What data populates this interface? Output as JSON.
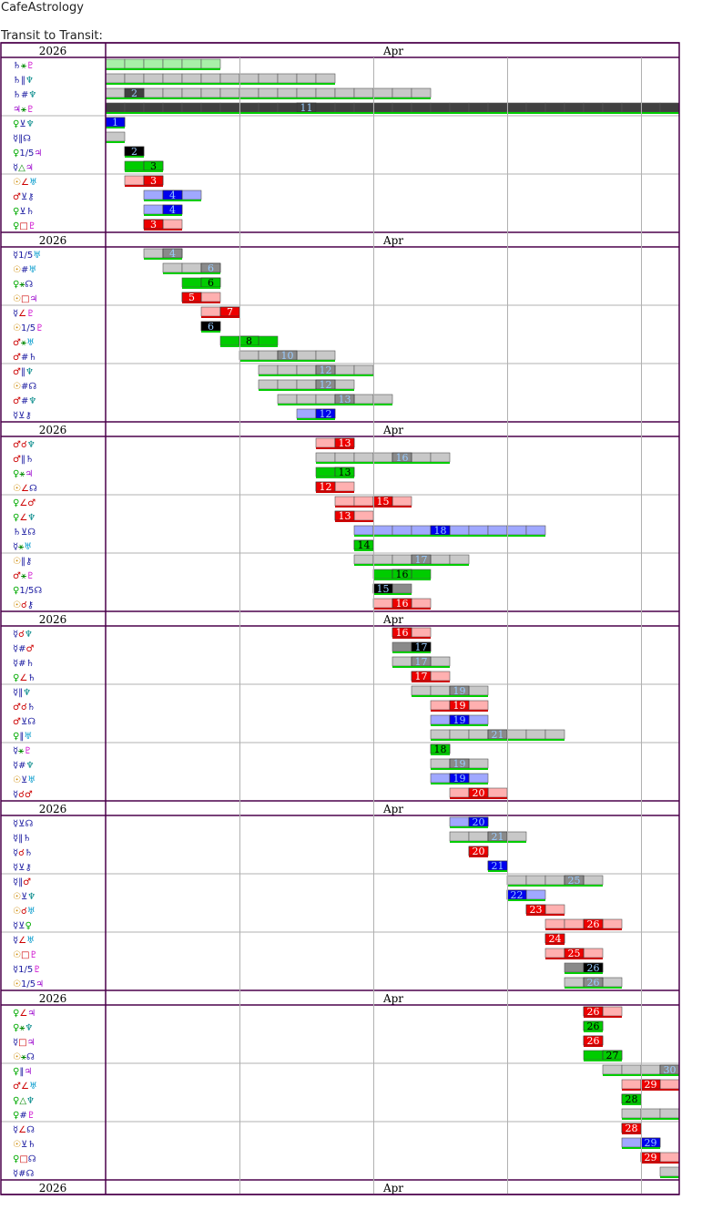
{
  "site_title": "CafeAstrology",
  "section_title": "Transit to Transit:",
  "year": "2026",
  "month": "Apr",
  "colors": {
    "frame": "#4b004b",
    "grid": "#b0b0b0",
    "green": "#00cc00",
    "light_green": "#a8f0a8",
    "gray_light": "#c8c8c8",
    "gray_mid": "#8a8a8a",
    "gray_dark": "#404040",
    "black": "#000000",
    "blue": "#0000ee",
    "light_blue": "#a0a8ff",
    "red": "#ee0000",
    "pink": "#ffb0b0",
    "underline_green": "#00cc00",
    "underline_red": "#cc0000"
  },
  "symbol_colors": {
    "☉": "#cc8800",
    "☿": "#1a1aa0",
    "♀": "#00aa00",
    "♂": "#cc0000",
    "♃": "#9900cc",
    "♄": "#1a1aa0",
    "♅": "#0099cc",
    "♆": "#008888",
    "♇": "#cc00cc",
    "⚷": "#1a1aa0",
    "☊": "#1a1aa0",
    "⚹": "#008800",
    "△": "#008800",
    "☌": "#cc0000",
    "□": "#cc0000",
    "∠": "#cc0000",
    "⊻": "#1a1aa0",
    "#": "#1a1aa0",
    "‖": "#1a1aa0",
    "1/5": "#1a1aa0"
  },
  "groups": [
    {
      "rows": [
        {
          "label": "♄⚹♇",
          "day": null,
          "start": 1,
          "end": 7,
          "style": "green-light"
        },
        {
          "label": "♄‖♆",
          "day": null,
          "start": 1,
          "end": 13,
          "style": "gray-light"
        },
        {
          "label": "♄#♆",
          "day": "2",
          "start": 1,
          "end": 18,
          "style": "gray-light-dark"
        },
        {
          "label": "♃⚹♇",
          "day": "11",
          "start": 1,
          "end": 31,
          "style": "gray-dark"
        }
      ]
    },
    {
      "rows": [
        {
          "label": "♀⊻♆",
          "day": "1",
          "start": 1,
          "end": 2,
          "style": "blue"
        },
        {
          "label": "☿‖☊",
          "day": null,
          "start": 1,
          "end": 2,
          "style": "gray-light"
        },
        {
          "label": "♀1/5♃",
          "day": "2",
          "start": 2,
          "end": 3,
          "style": "black"
        },
        {
          "label": "☿△♃",
          "day": "3",
          "start": 2,
          "end": 4,
          "style": "green"
        }
      ]
    },
    {
      "rows": [
        {
          "label": "☉∠♅",
          "day": "3",
          "start": 2,
          "end": 4,
          "style": "red"
        },
        {
          "label": "♂⊻⚷",
          "day": "4",
          "start": 3,
          "end": 6,
          "style": "blue"
        },
        {
          "label": "♀⊻♄",
          "day": "4",
          "start": 3,
          "end": 5,
          "style": "blue"
        },
        {
          "label": "♀□♇",
          "day": "3",
          "start": 3,
          "end": 5,
          "style": "red"
        }
      ]
    },
    {
      "header": true,
      "rows": [
        {
          "label": "☿1/5♅",
          "day": "4",
          "start": 3,
          "end": 5,
          "style": "gray"
        },
        {
          "label": "☉#♅",
          "day": "6",
          "start": 4,
          "end": 7,
          "style": "gray"
        },
        {
          "label": "♀⚹☊",
          "day": "6",
          "start": 5,
          "end": 7,
          "style": "green"
        },
        {
          "label": "☉□♃",
          "day": "5",
          "start": 5,
          "end": 7,
          "style": "red"
        }
      ]
    },
    {
      "rows": [
        {
          "label": "☿∠♇",
          "day": "7",
          "start": 6,
          "end": 8,
          "style": "red"
        },
        {
          "label": "☉1/5♇",
          "day": "6",
          "start": 6,
          "end": 7,
          "style": "black"
        },
        {
          "label": "♂⚹♅",
          "day": "8",
          "start": 7,
          "end": 10,
          "style": "green"
        },
        {
          "label": "♂#♄",
          "day": "10",
          "start": 8,
          "end": 13,
          "style": "gray"
        }
      ]
    },
    {
      "rows": [
        {
          "label": "♂‖♆",
          "day": "12",
          "start": 9,
          "end": 15,
          "style": "gray"
        },
        {
          "label": "☉#☊",
          "day": "12",
          "start": 9,
          "end": 14,
          "style": "gray"
        },
        {
          "label": "♂#♆",
          "day": "13",
          "start": 10,
          "end": 16,
          "style": "gray"
        },
        {
          "label": "☿⊻⚷",
          "day": "12",
          "start": 11,
          "end": 13,
          "style": "blue"
        }
      ]
    },
    {
      "header": true,
      "rows": [
        {
          "label": "♂☌♆",
          "day": "13",
          "start": 12,
          "end": 14,
          "style": "red"
        },
        {
          "label": "♂‖♄",
          "day": "16",
          "start": 12,
          "end": 19,
          "style": "gray"
        },
        {
          "label": "♀⚹♃",
          "day": "13",
          "start": 12,
          "end": 14,
          "style": "green"
        },
        {
          "label": "☉∠☊",
          "day": "12",
          "start": 12,
          "end": 14,
          "style": "red"
        }
      ]
    },
    {
      "rows": [
        {
          "label": "♀∠♂",
          "day": "15",
          "start": 13,
          "end": 17,
          "style": "red"
        },
        {
          "label": "♀∠♆",
          "day": "13",
          "start": 13,
          "end": 15,
          "style": "red"
        },
        {
          "label": "♄⊻☊",
          "day": "18",
          "start": 14,
          "end": 24,
          "style": "blue"
        },
        {
          "label": "☿⚹♅",
          "day": "14",
          "start": 14,
          "end": 15,
          "style": "green"
        }
      ]
    },
    {
      "rows": [
        {
          "label": "☉‖⚷",
          "day": "17",
          "start": 14,
          "end": 20,
          "style": "gray"
        },
        {
          "label": "♂⚹♇",
          "day": "16",
          "start": 15,
          "end": 18,
          "style": "green"
        },
        {
          "label": "♀1/5☊",
          "day": "15",
          "start": 15,
          "end": 17,
          "style": "black"
        },
        {
          "label": "☉☌⚷",
          "day": "16",
          "start": 15,
          "end": 18,
          "style": "red"
        }
      ]
    },
    {
      "header": true,
      "rows": [
        {
          "label": "☿☌♆",
          "day": "16",
          "start": 16,
          "end": 18,
          "style": "red"
        },
        {
          "label": "☿#♂",
          "day": "17",
          "start": 16,
          "end": 18,
          "style": "black"
        },
        {
          "label": "☿#♄",
          "day": "17",
          "start": 16,
          "end": 19,
          "style": "gray"
        },
        {
          "label": "♀∠♄",
          "day": "17",
          "start": 17,
          "end": 19,
          "style": "red"
        }
      ]
    },
    {
      "rows": [
        {
          "label": "☿‖♆",
          "day": "19",
          "start": 17,
          "end": 21,
          "style": "gray"
        },
        {
          "label": "♂☌♄",
          "day": "19",
          "start": 18,
          "end": 21,
          "style": "red"
        },
        {
          "label": "♂⊻☊",
          "day": "19",
          "start": 18,
          "end": 21,
          "style": "blue"
        },
        {
          "label": "♀‖♅",
          "day": "21",
          "start": 18,
          "end": 25,
          "style": "gray"
        }
      ]
    },
    {
      "rows": [
        {
          "label": "☿⚹♇",
          "day": "18",
          "start": 18,
          "end": 19,
          "style": "green"
        },
        {
          "label": "☿#♆",
          "day": "19",
          "start": 18,
          "end": 21,
          "style": "gray"
        },
        {
          "label": "☉⊻♅",
          "day": "19",
          "start": 18,
          "end": 21,
          "style": "blue"
        },
        {
          "label": "☿☌♂",
          "day": "20",
          "start": 19,
          "end": 22,
          "style": "red"
        }
      ]
    },
    {
      "header": true,
      "rows": [
        {
          "label": "☿⊻☊",
          "day": "20",
          "start": 19,
          "end": 21,
          "style": "blue"
        },
        {
          "label": "☿‖♄",
          "day": "21",
          "start": 19,
          "end": 23,
          "style": "gray"
        },
        {
          "label": "☿☌♄",
          "day": "20",
          "start": 20,
          "end": 21,
          "style": "red"
        },
        {
          "label": "☿⊻⚷",
          "day": "21",
          "start": 21,
          "end": 22,
          "style": "blue"
        }
      ]
    },
    {
      "rows": [
        {
          "label": "☿‖♂",
          "day": "25",
          "start": 22,
          "end": 27,
          "style": "gray"
        },
        {
          "label": "☉⊻♆",
          "day": "22",
          "start": 22,
          "end": 24,
          "style": "blue"
        },
        {
          "label": "☉☌♅",
          "day": "23",
          "start": 23,
          "end": 25,
          "style": "red"
        },
        {
          "label": "☿⊻♀",
          "day": "26",
          "start": 24,
          "end": 28,
          "style": "red"
        }
      ]
    },
    {
      "rows": [
        {
          "label": "☿∠♅",
          "day": "24",
          "start": 24,
          "end": 25,
          "style": "red"
        },
        {
          "label": "☉□♇",
          "day": "25",
          "start": 24,
          "end": 27,
          "style": "red"
        },
        {
          "label": "☿1/5♇",
          "day": "26",
          "start": 25,
          "end": 27,
          "style": "black"
        },
        {
          "label": "☉1/5♃",
          "day": "26",
          "start": 25,
          "end": 28,
          "style": "gray"
        }
      ]
    },
    {
      "header": true,
      "rows": [
        {
          "label": "♀∠♃",
          "day": "26",
          "start": 26,
          "end": 28,
          "style": "red"
        },
        {
          "label": "♀⚹♆",
          "day": "26",
          "start": 26,
          "end": 27,
          "style": "green"
        },
        {
          "label": "☿□♃",
          "day": "26",
          "start": 26,
          "end": 27,
          "style": "red"
        },
        {
          "label": "☉⚹☊",
          "day": "27",
          "start": 26,
          "end": 28,
          "style": "green"
        }
      ]
    },
    {
      "rows": [
        {
          "label": "♀‖♃",
          "day": "30",
          "start": 27,
          "end": 31,
          "style": "gray"
        },
        {
          "label": "♂∠♅",
          "day": "29",
          "start": 28,
          "end": 31,
          "style": "red"
        },
        {
          "label": "♀△♆",
          "day": "28",
          "start": 28,
          "end": 29,
          "style": "green"
        },
        {
          "label": "♀#♇",
          "day": null,
          "start": 28,
          "end": 31,
          "style": "gray"
        }
      ]
    },
    {
      "rows": [
        {
          "label": "☿∠☊",
          "day": "28",
          "start": 28,
          "end": 29,
          "style": "red"
        },
        {
          "label": "☉⊻♄",
          "day": "29",
          "start": 28,
          "end": 30,
          "style": "blue"
        },
        {
          "label": "♀□☊",
          "day": "29",
          "start": 29,
          "end": 31,
          "style": "red"
        },
        {
          "label": "☿#☊",
          "day": null,
          "start": 30,
          "end": 31,
          "style": "gray-light"
        }
      ]
    }
  ]
}
